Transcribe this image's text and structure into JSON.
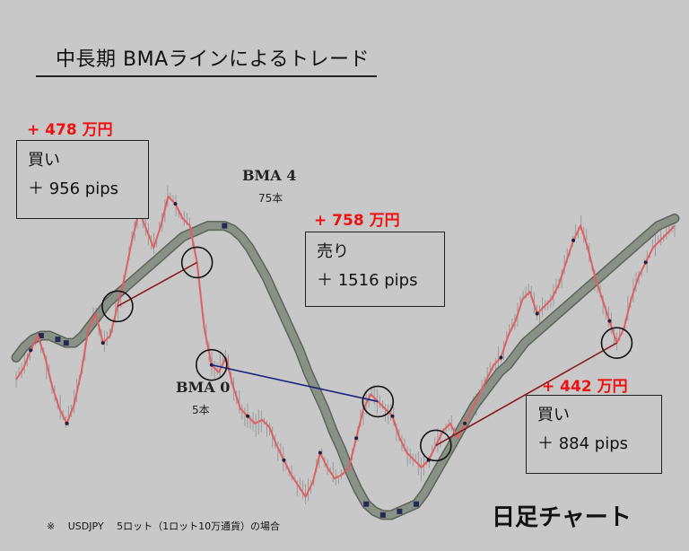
{
  "title": "中長期 BMAラインによるトレード",
  "chart_kind_label": "日足チャート",
  "footnote": "※　 USDJPY　 5ロット（1ロット10万通貨）の場合",
  "lines": [
    {
      "name": "BMA 4",
      "period_label": "75本"
    },
    {
      "name": "BMA 0",
      "period_label": "5本"
    }
  ],
  "trades": [
    {
      "profit": "+ 478 万円",
      "direction": "買い",
      "pips": "＋ 956 pips"
    },
    {
      "profit": "+ 758 万円",
      "direction": "売り",
      "pips": "＋ 1516 pips"
    },
    {
      "profit": "+ 442 万円",
      "direction": "買い",
      "pips": "＋ 884 pips"
    }
  ],
  "colors": {
    "background": "#c8c8c8",
    "price_line": "#e06060",
    "bma_slow": "#8a9186",
    "profit_text": "#ee1111",
    "buy_trade_line": "#8b1a1a",
    "sell_trade_line": "#1a237e"
  },
  "chart_data": {
    "type": "line",
    "title": "中長期 BMAラインによるトレード",
    "xlabel": "",
    "ylabel": "",
    "grid": false,
    "series": [
      {
        "name": "BMA 0",
        "values": [
          38,
          41,
          46,
          50,
          44,
          36,
          30,
          26,
          31,
          40,
          52,
          56,
          48,
          50,
          58,
          66,
          76,
          84,
          79,
          74,
          80,
          88,
          86,
          82,
          80,
          70,
          52,
          42,
          40,
          44,
          36,
          30,
          28,
          26,
          27,
          25,
          20,
          16,
          12,
          9,
          6,
          10,
          18,
          14,
          11,
          12,
          14,
          22,
          30,
          34,
          32,
          30,
          28,
          22,
          18,
          16,
          14,
          16,
          20,
          24,
          26,
          22,
          26,
          30,
          34,
          38,
          42,
          44,
          50,
          54,
          60,
          62,
          56,
          58,
          60,
          64,
          70,
          76,
          80,
          74,
          66,
          60,
          54,
          48,
          52,
          60,
          66,
          70,
          74,
          76,
          78,
          80
        ]
      },
      {
        "name": "BMA 4",
        "values": [
          44,
          47,
          49,
          50,
          50,
          49,
          48,
          48,
          50,
          53,
          56,
          59,
          61,
          63,
          65,
          67,
          69,
          71,
          73,
          75,
          77,
          78,
          79,
          80,
          80,
          80,
          79,
          77,
          74,
          70,
          66,
          61,
          56,
          51,
          46,
          40,
          35,
          30,
          24,
          19,
          13,
          8,
          4,
          2,
          1,
          1,
          2,
          3,
          4,
          7,
          11,
          15,
          19,
          23,
          27,
          31,
          34,
          37,
          40,
          42,
          45,
          48,
          50,
          52,
          54,
          56,
          58,
          60,
          62,
          64,
          66,
          68,
          70,
          72,
          74,
          76,
          78,
          80,
          81,
          82
        ]
      }
    ],
    "trades": [
      {
        "side": "buy",
        "entry_index": 14,
        "exit_index": 25
      },
      {
        "side": "sell",
        "entry_index": 27,
        "exit_index": 50
      },
      {
        "side": "buy",
        "entry_index": 58,
        "exit_index": 83
      }
    ]
  }
}
